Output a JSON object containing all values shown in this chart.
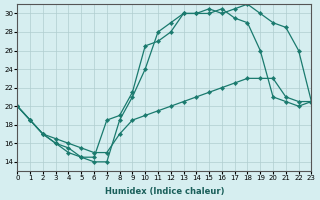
{
  "xlabel": "Humidex (Indice chaleur)",
  "ylabel": "",
  "background_color": "#d6eef0",
  "grid_color": "#b0cdd0",
  "line_color": "#1a7a6e",
  "xlim": [
    0,
    23
  ],
  "ylim": [
    13,
    31
  ],
  "xticks": [
    0,
    1,
    2,
    3,
    4,
    5,
    6,
    7,
    8,
    9,
    10,
    11,
    12,
    13,
    14,
    15,
    16,
    17,
    18,
    19,
    20,
    21,
    22,
    23
  ],
  "yticks": [
    14,
    16,
    18,
    20,
    22,
    24,
    26,
    28,
    30
  ],
  "line1_x": [
    0,
    1,
    2,
    3,
    4,
    5,
    6,
    7,
    8,
    9,
    10,
    11,
    12,
    13,
    14,
    15,
    16,
    17,
    18,
    19,
    20,
    21,
    22,
    23
  ],
  "line1_y": [
    20.0,
    18.5,
    17.0,
    16.0,
    15.0,
    14.5,
    14.0,
    14.0,
    18.5,
    21.0,
    24.0,
    28.0,
    29.0,
    30.0,
    30.0,
    30.5,
    30.0,
    30.5,
    31.0,
    30.0,
    29.0,
    28.5,
    26.0,
    20.5
  ],
  "line2_x": [
    0,
    1,
    2,
    3,
    4,
    5,
    6,
    7,
    8,
    9,
    10,
    11,
    12,
    13,
    14,
    15,
    16,
    17,
    18,
    19,
    20,
    21,
    22,
    23
  ],
  "line2_y": [
    20.0,
    18.5,
    17.0,
    16.0,
    15.5,
    14.5,
    14.5,
    18.5,
    19.0,
    21.5,
    26.5,
    27.0,
    28.0,
    30.0,
    30.0,
    30.0,
    30.5,
    29.5,
    29.0,
    26.0,
    21.0,
    20.5,
    20.0,
    20.5
  ],
  "line3_x": [
    0,
    1,
    2,
    3,
    4,
    5,
    6,
    7,
    8,
    9,
    10,
    11,
    12,
    13,
    14,
    15,
    16,
    17,
    18,
    19,
    20,
    21,
    22,
    23
  ],
  "line3_y": [
    20.0,
    18.5,
    17.0,
    16.5,
    16.0,
    15.5,
    15.0,
    15.0,
    17.0,
    18.5,
    19.0,
    19.5,
    20.0,
    20.5,
    21.0,
    21.5,
    22.0,
    22.5,
    23.0,
    23.0,
    23.0,
    21.0,
    20.5,
    20.5
  ]
}
